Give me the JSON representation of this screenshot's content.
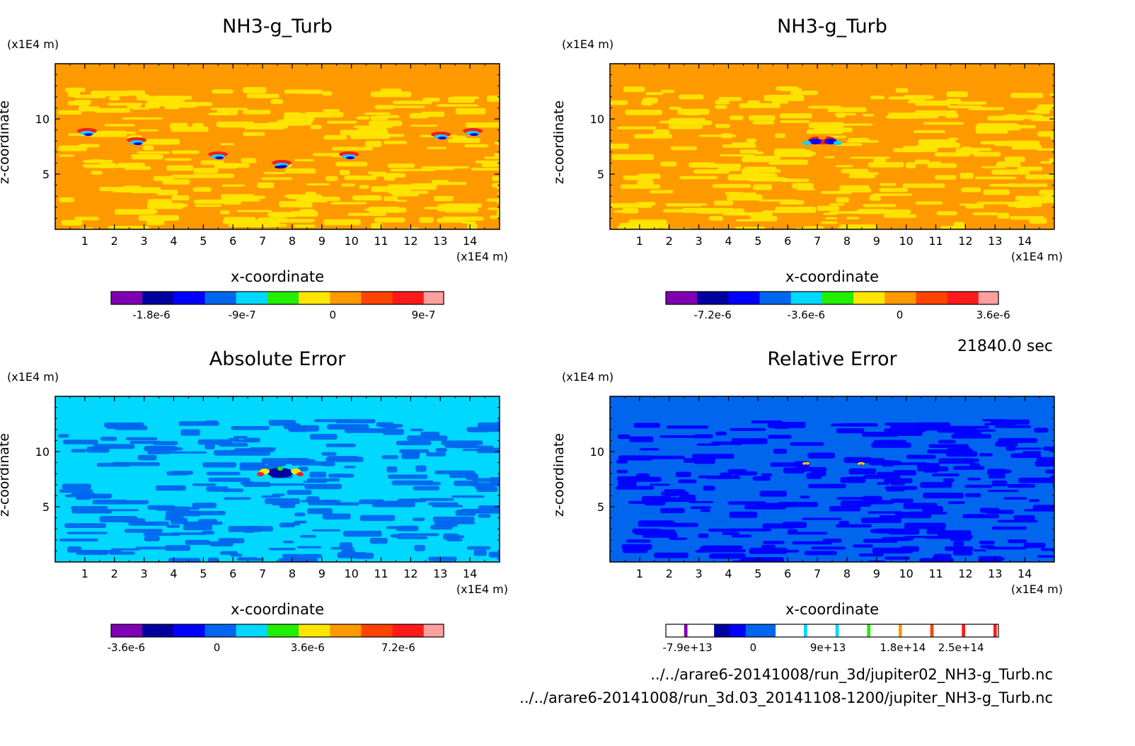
{
  "colors": {
    "purple": "#7f00b2",
    "navy": "#0000a0",
    "blue": "#0000ff",
    "mid_blue": "#0066ee",
    "cyan": "#00d8ff",
    "green": "#22ee00",
    "yellow": "#ffe600",
    "orange": "#ff9900",
    "red_orange": "#ff4400",
    "red": "#ff1a1a",
    "pink": "#ffa0a0",
    "white": "#ffffff"
  },
  "time_label": "21840.0 sec",
  "file_paths": [
    "../../arare6-20141008/run_3d/jupiter02_NH3-g_Turb.nc",
    "../../arare6-20141008/run_3d.03_20141108-1200/jupiter_NH3-g_Turb.nc"
  ],
  "chart_data": [
    {
      "type": "heatmap",
      "title": "NH3-g_Turb",
      "xlabel": "x-coordinate",
      "ylabel": "z-coordinate",
      "x_unit": "(x1E4 m)",
      "z_unit": "(x1E4 m)",
      "xlim": [
        0,
        15
      ],
      "zlim": [
        0,
        15
      ],
      "x_ticks": [
        "1",
        "2",
        "3",
        "4",
        "5",
        "6",
        "7",
        "8",
        "9",
        "10",
        "11",
        "12",
        "13",
        "14"
      ],
      "z_ticks": [
        "5",
        "10"
      ],
      "dominant": [
        "orange",
        "yellow"
      ],
      "upper_layer": "orange",
      "features": "scattered blue/green/red eddies at z≈7–9",
      "colorbar": {
        "colors": [
          "purple",
          "navy",
          "blue",
          "mid_blue",
          "cyan",
          "green",
          "yellow",
          "orange",
          "red_orange",
          "red",
          "pink"
        ],
        "tick_labels": [
          "-1.8e-6",
          "-9e-7",
          "0",
          "9e-7"
        ],
        "tick_values": [
          -1.8e-06,
          -9e-07,
          0,
          9e-07
        ],
        "range": [
          -2.2e-06,
          1.1e-06
        ]
      }
    },
    {
      "type": "heatmap",
      "title": "NH3-g_Turb",
      "xlabel": "x-coordinate",
      "ylabel": "z-coordinate",
      "x_unit": "(x1E4 m)",
      "z_unit": "(x1E4 m)",
      "xlim": [
        0,
        15
      ],
      "zlim": [
        0,
        15
      ],
      "x_ticks": [
        "1",
        "2",
        "3",
        "4",
        "5",
        "6",
        "7",
        "8",
        "9",
        "10",
        "11",
        "12",
        "13",
        "14"
      ],
      "z_ticks": [
        "5",
        "10"
      ],
      "dominant": [
        "orange",
        "yellow"
      ],
      "upper_layer": "orange",
      "features": "central blue/red eddy pair near x≈7.5, z≈8",
      "colorbar": {
        "colors": [
          "purple",
          "navy",
          "blue",
          "mid_blue",
          "cyan",
          "green",
          "yellow",
          "orange",
          "red_orange",
          "red",
          "pink"
        ],
        "tick_labels": [
          "-7.2e-6",
          "-3.6e-6",
          "0",
          "3.6e-6"
        ],
        "tick_values": [
          -7.2e-06,
          -3.6e-06,
          0,
          3.6e-06
        ],
        "range": [
          -9e-06,
          3.8e-06
        ]
      }
    },
    {
      "type": "heatmap",
      "title": "Absolute Error",
      "xlabel": "x-coordinate",
      "ylabel": "z-coordinate",
      "x_unit": "(x1E4 m)",
      "z_unit": "(x1E4 m)",
      "xlim": [
        0,
        15
      ],
      "zlim": [
        0,
        15
      ],
      "x_ticks": [
        "1",
        "2",
        "3",
        "4",
        "5",
        "6",
        "7",
        "8",
        "9",
        "10",
        "11",
        "12",
        "13",
        "14"
      ],
      "z_ticks": [
        "5",
        "10"
      ],
      "dominant": [
        "cyan",
        "mid_blue"
      ],
      "upper_layer": "cyan",
      "features": "central navy/yellow/red eddy pair near x≈7.5, z≈8",
      "colorbar": {
        "colors": [
          "purple",
          "navy",
          "blue",
          "mid_blue",
          "cyan",
          "green",
          "yellow",
          "orange",
          "red_orange",
          "red",
          "pink"
        ],
        "tick_labels": [
          "-3.6e-6",
          "0",
          "3.6e-6",
          "7.2e-6"
        ],
        "tick_values": [
          -3.6e-06,
          0,
          3.6e-06,
          7.2e-06
        ],
        "range": [
          -4.2e-06,
          9e-06
        ]
      }
    },
    {
      "type": "heatmap",
      "title": "Relative Error",
      "xlabel": "x-coordinate",
      "ylabel": "z-coordinate",
      "x_unit": "(x1E4 m)",
      "z_unit": "(x1E4 m)",
      "xlim": [
        0,
        15
      ],
      "zlim": [
        0,
        15
      ],
      "x_ticks": [
        "1",
        "2",
        "3",
        "4",
        "5",
        "6",
        "7",
        "8",
        "9",
        "10",
        "11",
        "12",
        "13",
        "14"
      ],
      "z_ticks": [
        "5",
        "10"
      ],
      "dominant": [
        "mid_blue",
        "blue"
      ],
      "upper_layer": "mid_blue",
      "features": "small yellow/red spots near x≈6.8 and x≈8.6, z≈9",
      "colorbar": {
        "segments": [
          [
            "white",
            0.055
          ],
          [
            "purple",
            0.01
          ],
          [
            "white",
            0.08
          ],
          [
            "navy",
            0.045
          ],
          [
            "blue",
            0.05
          ],
          [
            "mid_blue",
            0.09
          ],
          [
            "white",
            0.085
          ],
          [
            "cyan",
            0.01
          ],
          [
            "white",
            0.085
          ],
          [
            "cyan",
            0.01
          ],
          [
            "white",
            0.085
          ],
          [
            "green",
            0.01
          ],
          [
            "white",
            0.085
          ],
          [
            "orange",
            0.01
          ],
          [
            "white",
            0.085
          ],
          [
            "red_orange",
            0.01
          ],
          [
            "white",
            0.085
          ],
          [
            "red",
            0.01
          ],
          [
            "white",
            0.085
          ],
          [
            "red",
            0.01
          ],
          [
            "white",
            0.035
          ]
        ],
        "tick_labels": [
          "-7.9e+13",
          "0",
          "9e+13",
          "1.8e+14",
          "2.5e+14"
        ],
        "tick_values": [
          -79000000000000.0,
          0,
          90000000000000.0,
          180000000000000.0,
          250000000000000.0
        ],
        "range": [
          -105000000000000.0,
          295000000000000.0
        ]
      }
    }
  ]
}
